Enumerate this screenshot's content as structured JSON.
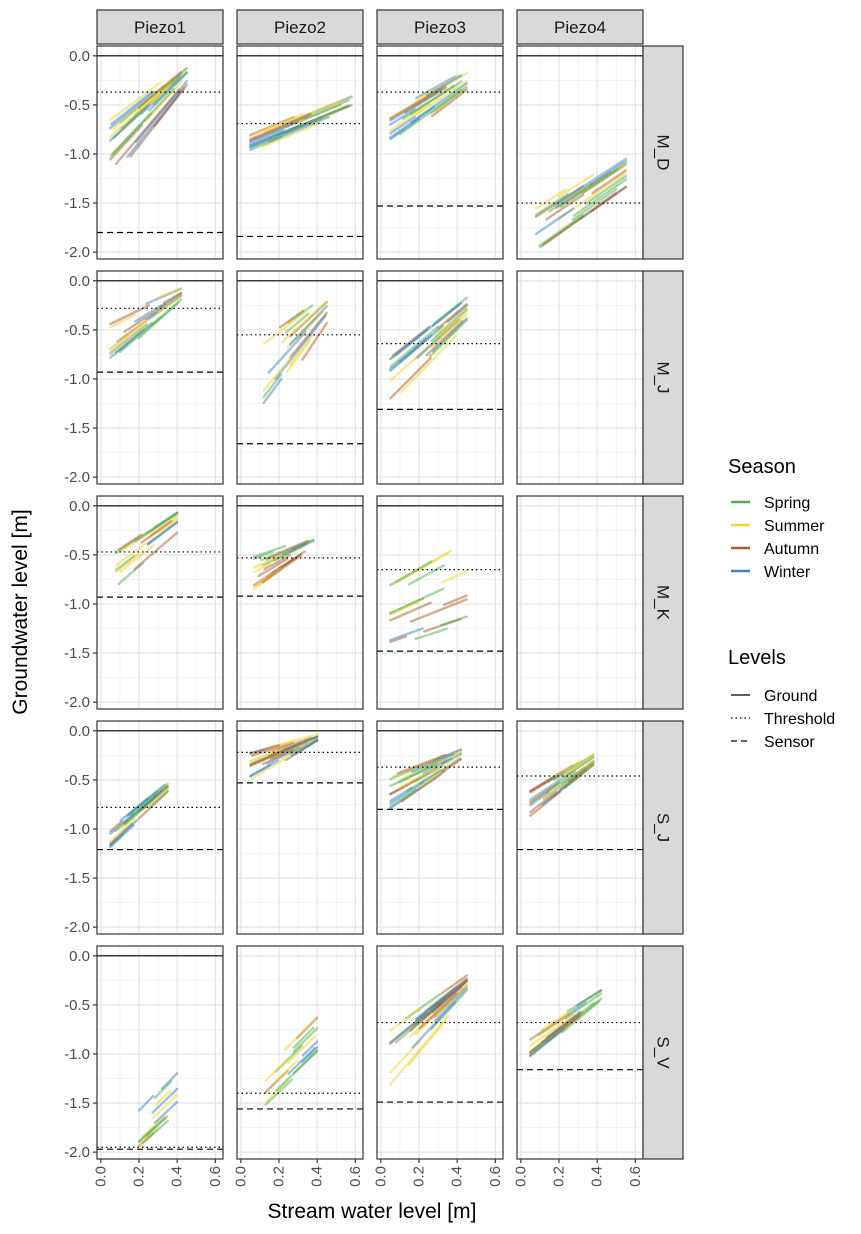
{
  "chart_data": {
    "type": "line",
    "facet_columns": [
      "Piezo1",
      "Piezo2",
      "Piezo3",
      "Piezo4"
    ],
    "facet_rows": [
      "M_D",
      "M_J",
      "M_K",
      "S_J",
      "S_V"
    ],
    "xlabel": "Stream water level  [m]",
    "ylabel": "Groundwater level  [m]",
    "xlim": [
      -0.02,
      0.64
    ],
    "ylim": [
      -2.07,
      0.1
    ],
    "x_ticks": [
      "0.0",
      "0.2",
      "0.4",
      "0.6"
    ],
    "x_tick_values": [
      0,
      0.2,
      0.4,
      0.6
    ],
    "y_ticks": [
      "0.0",
      "-0.5",
      "-1.0",
      "-1.5",
      "-2.0"
    ],
    "y_tick_values": [
      0,
      -0.5,
      -1.0,
      -1.5,
      -2.0
    ],
    "grid": true,
    "legend_position": "right",
    "season_legend": {
      "title": "Season",
      "entries": [
        {
          "name": "Spring",
          "color": "#4daf4a"
        },
        {
          "name": "Summer",
          "color": "#f2d32d"
        },
        {
          "name": "Autumn",
          "color": "#b05a2c"
        },
        {
          "name": "Winter",
          "color": "#3a86c8"
        }
      ]
    },
    "levels_legend": {
      "title": "Levels",
      "entries": [
        {
          "name": "Ground",
          "linetype": "solid"
        },
        {
          "name": "Threshold",
          "linetype": "dotted"
        },
        {
          "name": "Sensor",
          "linetype": "dashed"
        }
      ]
    },
    "panels": [
      {
        "row": 0,
        "col": 0,
        "ground": 0.0,
        "threshold": -0.37,
        "sensor": -1.8,
        "bundle": {
          "x": [
            0.05,
            0.45
          ],
          "y_top": [
            -0.65,
            -0.07
          ],
          "y_bot": [
            -1.3,
            -0.3
          ],
          "n": 26
        }
      },
      {
        "row": 0,
        "col": 1,
        "ground": 0.0,
        "threshold": -0.69,
        "sensor": -1.84,
        "bundle": {
          "x": [
            0.05,
            0.58
          ],
          "y_top": [
            -0.8,
            -0.38
          ],
          "y_bot": [
            -0.98,
            -0.55
          ],
          "n": 22
        }
      },
      {
        "row": 0,
        "col": 2,
        "ground": 0.0,
        "threshold": -0.37,
        "sensor": -1.53,
        "bundle": {
          "x": [
            0.05,
            0.45
          ],
          "y_top": [
            -0.55,
            -0.13
          ],
          "y_bot": [
            -0.95,
            -0.35
          ],
          "n": 22
        }
      },
      {
        "row": 0,
        "col": 3,
        "ground": 0.0,
        "threshold": -1.5,
        "sensor": null,
        "bundle": {
          "x": [
            0.08,
            0.55
          ],
          "y_top": [
            -1.55,
            -0.97
          ],
          "y_bot": [
            -2.0,
            -1.35
          ],
          "n": 24
        }
      },
      {
        "row": 1,
        "col": 0,
        "ground": 0.0,
        "threshold": -0.28,
        "sensor": -0.93,
        "bundle": {
          "x": [
            0.05,
            0.42
          ],
          "y_top": [
            -0.35,
            -0.07
          ],
          "y_bot": [
            -0.85,
            -0.2
          ],
          "n": 22
        }
      },
      {
        "row": 1,
        "col": 1,
        "ground": 0.0,
        "threshold": -0.55,
        "sensor": -1.66,
        "bundle": {
          "x": [
            0.12,
            0.45
          ],
          "y_top": [
            -0.55,
            -0.12
          ],
          "y_bot": [
            -1.58,
            -0.5
          ],
          "n": 18
        }
      },
      {
        "row": 1,
        "col": 2,
        "ground": 0.0,
        "threshold": -0.64,
        "sensor": -1.31,
        "bundle": {
          "x": [
            0.05,
            0.45
          ],
          "y_top": [
            -0.75,
            -0.15
          ],
          "y_bot": [
            -1.25,
            -0.45
          ],
          "n": 24
        }
      },
      {
        "row": 1,
        "col": 3,
        "ground": null,
        "threshold": null,
        "sensor": null,
        "bundle": null
      },
      {
        "row": 2,
        "col": 0,
        "ground": 0.0,
        "threshold": -0.47,
        "sensor": -0.93,
        "bundle": {
          "x": [
            0.08,
            0.4
          ],
          "y_top": [
            -0.45,
            -0.05
          ],
          "y_bot": [
            -0.85,
            -0.3
          ],
          "n": 18
        }
      },
      {
        "row": 2,
        "col": 1,
        "ground": 0.0,
        "threshold": -0.53,
        "sensor": -0.92,
        "bundle": {
          "x": [
            0.07,
            0.38
          ],
          "y_top": [
            -0.48,
            -0.3
          ],
          "y_bot": [
            -0.85,
            -0.42
          ],
          "n": 18
        }
      },
      {
        "row": 2,
        "col": 2,
        "ground": 0.0,
        "threshold": -0.65,
        "sensor": -1.48,
        "bundle": {
          "x": [
            0.05,
            0.45
          ],
          "y_top": [
            -0.7,
            -0.22
          ],
          "y_bot": [
            -1.45,
            -1.2
          ],
          "n": 16
        }
      },
      {
        "row": 2,
        "col": 3,
        "ground": null,
        "threshold": null,
        "sensor": null,
        "bundle": null
      },
      {
        "row": 3,
        "col": 0,
        "ground": 0.0,
        "threshold": -0.78,
        "sensor": -1.21,
        "bundle": {
          "x": [
            0.05,
            0.35
          ],
          "y_top": [
            -1.0,
            -0.52
          ],
          "y_bot": [
            -1.21,
            -0.65
          ],
          "n": 22
        }
      },
      {
        "row": 3,
        "col": 1,
        "ground": 0.0,
        "threshold": -0.22,
        "sensor": -0.53,
        "bundle": {
          "x": [
            0.05,
            0.4
          ],
          "y_top": [
            -0.2,
            -0.03
          ],
          "y_bot": [
            -0.53,
            -0.1
          ],
          "n": 26
        }
      },
      {
        "row": 3,
        "col": 2,
        "ground": 0.0,
        "threshold": -0.37,
        "sensor": -0.8,
        "bundle": {
          "x": [
            0.05,
            0.42
          ],
          "y_top": [
            -0.45,
            -0.18
          ],
          "y_bot": [
            -0.8,
            -0.3
          ],
          "n": 26
        }
      },
      {
        "row": 3,
        "col": 3,
        "ground": null,
        "threshold": -0.46,
        "sensor": -1.21,
        "bundle": {
          "x": [
            0.05,
            0.38
          ],
          "y_top": [
            -0.6,
            -0.22
          ],
          "y_bot": [
            -0.87,
            -0.35
          ],
          "n": 26
        }
      },
      {
        "row": 4,
        "col": 0,
        "ground": 0.0,
        "threshold": -1.95,
        "sensor": -1.97,
        "bundle": {
          "x": [
            0.2,
            0.4
          ],
          "y_top": [
            -1.55,
            -1.15
          ],
          "y_bot": [
            -1.95,
            -1.6
          ],
          "n": 14
        }
      },
      {
        "row": 4,
        "col": 1,
        "ground": null,
        "threshold": -1.4,
        "sensor": -1.56,
        "bundle": {
          "x": [
            0.13,
            0.4
          ],
          "y_top": [
            -1.15,
            -0.62
          ],
          "y_bot": [
            -1.55,
            -1.05
          ],
          "n": 16
        }
      },
      {
        "row": 4,
        "col": 2,
        "ground": null,
        "threshold": -0.68,
        "sensor": -1.49,
        "bundle": {
          "x": [
            0.05,
            0.45
          ],
          "y_top": [
            -0.75,
            -0.2
          ],
          "y_bot": [
            -1.35,
            -0.4
          ],
          "n": 26
        }
      },
      {
        "row": 4,
        "col": 3,
        "ground": null,
        "threshold": -0.68,
        "sensor": -1.16,
        "bundle": {
          "x": [
            0.05,
            0.42
          ],
          "y_top": [
            -0.8,
            -0.35
          ],
          "y_bot": [
            -1.05,
            -0.45
          ],
          "n": 22
        }
      }
    ]
  }
}
